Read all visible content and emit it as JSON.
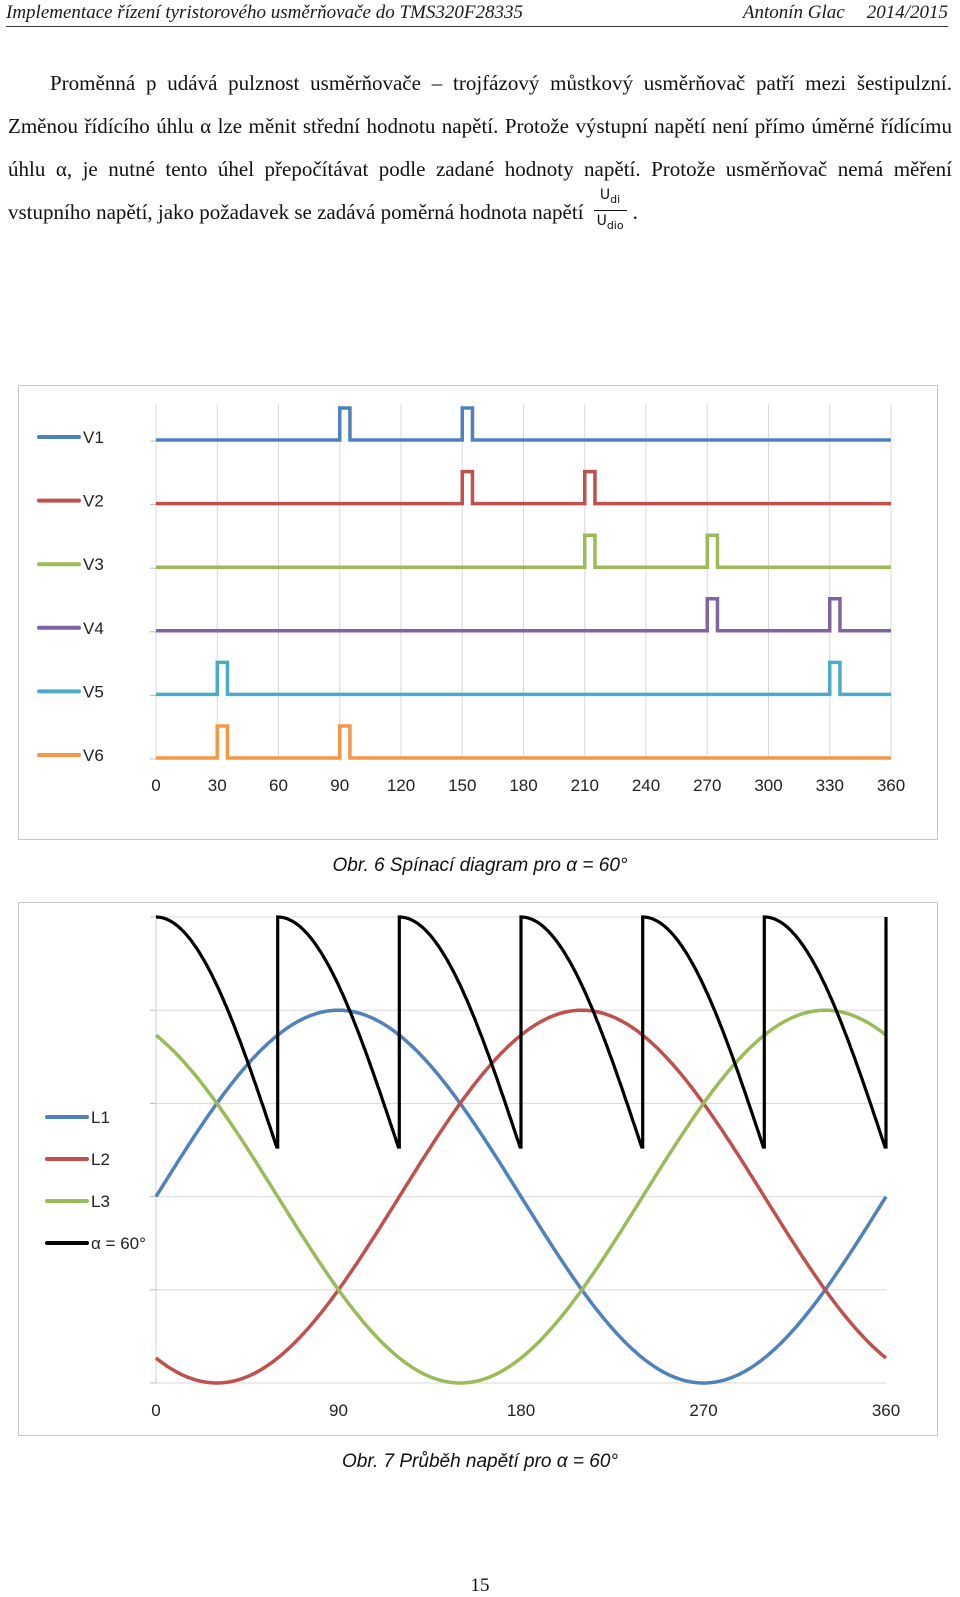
{
  "header": {
    "title": "Implementace řízení tyristorového usměrňovače do TMS320F28335",
    "author": "Antonín Glac",
    "year": "2014/2015"
  },
  "paragraph": {
    "text": "Proměnná p udává pulznost usměrňovače – trojfázový můstkový usměrňovač patří mezi šestipulzní. Změnou řídícího úhlu α lze měnit střední hodnotu napětí. Protože výstupní napětí není přímo úměrné řídícímu úhlu α, je nutné tento úhel přepočítávat podle zadané hodnoty napětí. Protože usměrňovač nemá měření vstupního napětí, jako požadavek se zadává poměrná hodnota napětí",
    "fraction_numerator": "U",
    "fraction_numerator_sub": "di",
    "fraction_denominator": "U",
    "fraction_denominator_sub": "dio",
    "end": "."
  },
  "figure6": {
    "caption": "Obr. 6 Spínací diagram pro α = 60°",
    "chart_data": {
      "type": "line",
      "title": "",
      "x_ticks": [
        0,
        30,
        60,
        90,
        120,
        150,
        180,
        210,
        240,
        270,
        300,
        330,
        360
      ],
      "xlim": [
        0,
        360
      ],
      "pulse_width_deg": 5,
      "series": [
        {
          "name": "V1",
          "color": "#4F81BD",
          "pulses_at": [
            90,
            150
          ]
        },
        {
          "name": "V2",
          "color": "#C0504D",
          "pulses_at": [
            150,
            210
          ]
        },
        {
          "name": "V3",
          "color": "#9BBB59",
          "pulses_at": [
            210,
            270
          ]
        },
        {
          "name": "V4",
          "color": "#8064A2",
          "pulses_at": [
            270,
            330
          ]
        },
        {
          "name": "V5",
          "color": "#4BACC6",
          "pulses_at": [
            30,
            330
          ]
        },
        {
          "name": "V6",
          "color": "#F79646",
          "pulses_at": [
            30,
            90
          ]
        }
      ],
      "grid": "vertical",
      "legend": "left"
    }
  },
  "figure7": {
    "caption": "Obr. 7 Průběh napětí pro α = 60°",
    "chart_data": {
      "type": "line",
      "title": "",
      "x_ticks": [
        0,
        90,
        180,
        270,
        360
      ],
      "xlim": [
        0,
        360
      ],
      "ylim": [
        -1.0,
        1.5
      ],
      "series": [
        {
          "name": "L1",
          "color": "#4F81BD",
          "function": "sin(x)"
        },
        {
          "name": "L2",
          "color": "#C0504D",
          "function": "sin(x-120)"
        },
        {
          "name": "L3",
          "color": "#9BBB59",
          "function": "sin(x+120)"
        },
        {
          "name": "α = 60°",
          "color": "#000000",
          "function": "max line-to-line voltage, commutation delayed by α = 60°",
          "alpha_deg": 60
        }
      ],
      "grid": "horizontal",
      "legend": "left"
    }
  },
  "page_number": "15"
}
